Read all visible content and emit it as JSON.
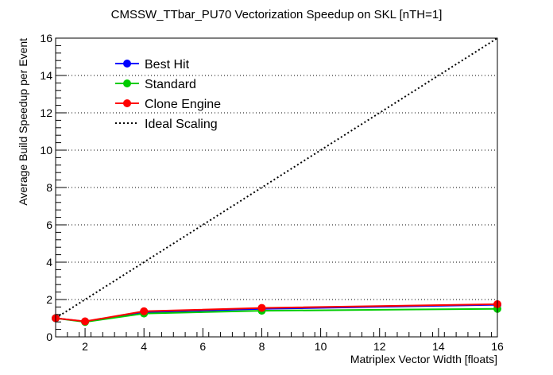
{
  "chart_data": {
    "type": "line",
    "title": "CMSSW_TTbar_PU70 Vectorization Speedup on SKL [nTH=1]",
    "xlabel": "Matriplex Vector Width [floats]",
    "ylabel": "Average Build Speedup per Event",
    "xlim": [
      1,
      16
    ],
    "ylim": [
      0,
      16
    ],
    "x_ticks": [
      "2",
      "4",
      "6",
      "8",
      "10",
      "12",
      "14",
      "16"
    ],
    "y_ticks": [
      "0",
      "2",
      "4",
      "6",
      "8",
      "10",
      "12",
      "14",
      "16"
    ],
    "grid": "horizontal-dotted",
    "legend_position": "top-left",
    "series": [
      {
        "name": "Best Hit",
        "color": "#0000ff",
        "x": [
          1,
          2,
          4,
          8,
          16
        ],
        "y": [
          1.0,
          0.82,
          1.32,
          1.5,
          1.72
        ]
      },
      {
        "name": "Standard",
        "color": "#00cc00",
        "x": [
          1,
          2,
          4,
          8,
          16
        ],
        "y": [
          1.0,
          0.8,
          1.25,
          1.4,
          1.5
        ]
      },
      {
        "name": "Clone Engine",
        "color": "#ff0000",
        "x": [
          1,
          2,
          4,
          8,
          16
        ],
        "y": [
          1.0,
          0.83,
          1.37,
          1.55,
          1.75
        ]
      },
      {
        "name": "Ideal Scaling",
        "color": "#000000",
        "style": "dotted",
        "x": [
          1,
          16
        ],
        "y": [
          1,
          16
        ]
      }
    ]
  }
}
